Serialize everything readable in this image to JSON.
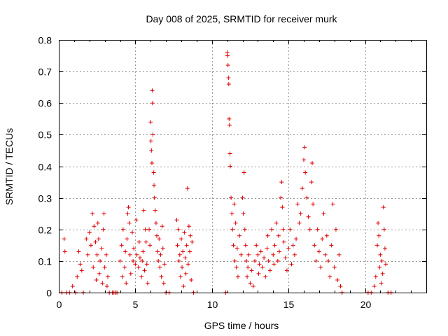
{
  "chart_data": {
    "type": "scatter",
    "title": "Day 008 of 2025, SRMTID for receiver murk",
    "xlabel": "GPS time / hours",
    "ylabel": "SRMTID / TECUs",
    "xlim": [
      0,
      24
    ],
    "ylim": [
      0,
      0.8
    ],
    "xticks": [
      0,
      5,
      10,
      15,
      20
    ],
    "yticks": [
      0,
      0.1,
      0.2,
      0.3,
      0.4,
      0.5,
      0.6,
      0.7,
      0.8
    ],
    "xtick_labels": [
      "0",
      "5",
      "10",
      "15",
      "20"
    ],
    "ytick_labels": [
      "0",
      "0.1",
      "0.2",
      "0.3",
      "0.4",
      "0.5",
      "0.6",
      "0.7",
      "0.8"
    ],
    "grid": true,
    "marker": "+",
    "color": "#e00000",
    "series": [
      {
        "points": [
          [
            0.2,
            0
          ],
          [
            0.35,
            0.17
          ],
          [
            0.4,
            0.13
          ],
          [
            0.5,
            0
          ],
          [
            0.7,
            0
          ],
          [
            0.9,
            0.02
          ],
          [
            1.1,
            0
          ],
          [
            1.2,
            0.05
          ],
          [
            1.3,
            0.13
          ],
          [
            1.4,
            0.09
          ],
          [
            1.5,
            0.07
          ],
          [
            1.6,
            0
          ],
          [
            1.8,
            0.17
          ],
          [
            1.9,
            0.12
          ],
          [
            2.0,
            0.19
          ],
          [
            2.1,
            0.15
          ],
          [
            2.2,
            0.25
          ],
          [
            2.25,
            0.08
          ],
          [
            2.3,
            0.21
          ],
          [
            2.4,
            0.16
          ],
          [
            2.45,
            0.04
          ],
          [
            2.5,
            0.12
          ],
          [
            2.55,
            0.22
          ],
          [
            2.6,
            0.17
          ],
          [
            2.65,
            0.06
          ],
          [
            2.7,
            0.1
          ],
          [
            2.8,
            0.14
          ],
          [
            2.85,
            0.03
          ],
          [
            2.9,
            0.2
          ],
          [
            2.95,
            0.25
          ],
          [
            3.0,
            0.08
          ],
          [
            3.1,
            0.12
          ],
          [
            3.15,
            0.02
          ],
          [
            3.2,
            0.05
          ],
          [
            3.3,
            0
          ],
          [
            3.5,
            0
          ],
          [
            3.6,
            0
          ],
          [
            3.7,
            0
          ],
          [
            3.8,
            0
          ],
          [
            4.0,
            0.1
          ],
          [
            4.1,
            0.15
          ],
          [
            4.15,
            0.05
          ],
          [
            4.2,
            0.2
          ],
          [
            4.3,
            0.08
          ],
          [
            4.35,
            0.13
          ],
          [
            4.4,
            0.03
          ],
          [
            4.45,
            0.17
          ],
          [
            4.5,
            0.25
          ],
          [
            4.55,
            0.27
          ],
          [
            4.6,
            0.22
          ],
          [
            4.65,
            0.12
          ],
          [
            4.7,
            0.06
          ],
          [
            4.8,
            0.19
          ],
          [
            4.85,
            0.1
          ],
          [
            4.9,
            0.14
          ],
          [
            5.0,
            0.09
          ],
          [
            5.05,
            0.23
          ],
          [
            5.1,
            0.12
          ],
          [
            5.2,
            0.08
          ],
          [
            5.25,
            0.16
          ],
          [
            5.3,
            0.11
          ],
          [
            5.4,
            0.05
          ],
          [
            5.45,
            0.1
          ],
          [
            5.5,
            0.13
          ],
          [
            5.55,
            0.26
          ],
          [
            5.6,
            0.07
          ],
          [
            5.65,
            0.2
          ],
          [
            5.7,
            0.16
          ],
          [
            5.75,
            0.09
          ],
          [
            5.8,
            0.03
          ],
          [
            5.9,
            0.2
          ],
          [
            5.95,
            0.15
          ],
          [
            6.0,
            0.54
          ],
          [
            6.02,
            0.48
          ],
          [
            6.05,
            0.45
          ],
          [
            6.08,
            0.41
          ],
          [
            6.1,
            0.64
          ],
          [
            6.12,
            0.6
          ],
          [
            6.15,
            0.5
          ],
          [
            6.2,
            0.38
          ],
          [
            6.22,
            0.34
          ],
          [
            6.25,
            0.3
          ],
          [
            6.3,
            0.26
          ],
          [
            6.35,
            0.22
          ],
          [
            6.4,
            0.18
          ],
          [
            6.45,
            0.13
          ],
          [
            6.5,
            0.1
          ],
          [
            6.55,
            0.17
          ],
          [
            6.6,
            0.08
          ],
          [
            6.65,
            0.12
          ],
          [
            6.7,
            0.05
          ],
          [
            6.75,
            0.21
          ],
          [
            6.8,
            0.14
          ],
          [
            6.85,
            0.03
          ],
          [
            6.9,
            0.09
          ],
          [
            7.0,
            0
          ],
          [
            7.2,
            0
          ],
          [
            7.7,
            0.23
          ],
          [
            7.75,
            0.15
          ],
          [
            7.8,
            0.2
          ],
          [
            7.85,
            0.1
          ],
          [
            7.9,
            0.12
          ],
          [
            7.95,
            0.05
          ],
          [
            8.0,
            0.17
          ],
          [
            8.05,
            0.08
          ],
          [
            8.1,
            0.13
          ],
          [
            8.15,
            0.02
          ],
          [
            8.2,
            0.19
          ],
          [
            8.25,
            0.11
          ],
          [
            8.3,
            0.06
          ],
          [
            8.35,
            0.15
          ],
          [
            8.4,
            0.33
          ],
          [
            8.45,
            0.09
          ],
          [
            8.5,
            0.21
          ],
          [
            8.55,
            0.13
          ],
          [
            8.6,
            0.18
          ],
          [
            8.65,
            0.04
          ],
          [
            8.7,
            0.16
          ],
          [
            8.8,
            0
          ],
          [
            10.9,
            0
          ],
          [
            11.0,
            0.76
          ],
          [
            11.02,
            0.75
          ],
          [
            11.05,
            0.72
          ],
          [
            11.08,
            0.68
          ],
          [
            11.1,
            0.66
          ],
          [
            11.12,
            0.55
          ],
          [
            11.15,
            0.53
          ],
          [
            11.18,
            0.44
          ],
          [
            11.2,
            0.4
          ],
          [
            11.25,
            0.3
          ],
          [
            11.3,
            0.25
          ],
          [
            11.35,
            0.2
          ],
          [
            11.4,
            0.15
          ],
          [
            11.45,
            0.28
          ],
          [
            11.5,
            0.1
          ],
          [
            11.55,
            0.22
          ],
          [
            11.6,
            0.08
          ],
          [
            11.65,
            0.14
          ],
          [
            11.7,
            0.05
          ],
          [
            11.8,
            0.18
          ],
          [
            11.9,
            0.12
          ],
          [
            12.0,
            0.3
          ],
          [
            12.05,
            0.25
          ],
          [
            12.1,
            0.38
          ],
          [
            12.15,
            0.2
          ],
          [
            12.2,
            0.15
          ],
          [
            12.25,
            0.1
          ],
          [
            12.3,
            0.05
          ],
          [
            12.35,
            0.08
          ],
          [
            12.4,
            0.12
          ],
          [
            12.5,
            0.03
          ],
          [
            12.6,
            0.07
          ],
          [
            12.7,
            0.02
          ],
          [
            12.8,
            0.1
          ],
          [
            12.9,
            0.15
          ],
          [
            13.0,
            0.12
          ],
          [
            13.05,
            0.06
          ],
          [
            13.1,
            0.09
          ],
          [
            13.2,
            0.13
          ],
          [
            13.3,
            0.08
          ],
          [
            13.4,
            0.11
          ],
          [
            13.5,
            0.05
          ],
          [
            13.6,
            0.14
          ],
          [
            13.65,
            0.18
          ],
          [
            13.7,
            0.1
          ],
          [
            13.8,
            0.07
          ],
          [
            13.9,
            0.2
          ],
          [
            14.0,
            0.12
          ],
          [
            14.05,
            0.09
          ],
          [
            14.1,
            0.15
          ],
          [
            14.2,
            0.22
          ],
          [
            14.3,
            0.1
          ],
          [
            14.35,
            0.18
          ],
          [
            14.4,
            0.13
          ],
          [
            14.5,
            0.3
          ],
          [
            14.55,
            0.35
          ],
          [
            14.6,
            0.27
          ],
          [
            14.65,
            0.2
          ],
          [
            14.7,
            0.16
          ],
          [
            14.8,
            0.11
          ],
          [
            14.9,
            0.07
          ],
          [
            15.0,
            0.14
          ],
          [
            15.1,
            0.2
          ],
          [
            15.2,
            0.09
          ],
          [
            15.3,
            0.15
          ],
          [
            15.4,
            0.12
          ],
          [
            15.5,
            0.17
          ],
          [
            15.6,
            0.28
          ],
          [
            15.7,
            0.22
          ],
          [
            15.8,
            0.25
          ],
          [
            15.9,
            0.33
          ],
          [
            16.0,
            0.42
          ],
          [
            16.05,
            0.46
          ],
          [
            16.1,
            0.38
          ],
          [
            16.2,
            0.3
          ],
          [
            16.3,
            0.24
          ],
          [
            16.4,
            0.2
          ],
          [
            16.5,
            0.35
          ],
          [
            16.55,
            0.41
          ],
          [
            16.6,
            0.28
          ],
          [
            16.7,
            0.15
          ],
          [
            16.8,
            0.1
          ],
          [
            16.9,
            0.2
          ],
          [
            17.0,
            0.13
          ],
          [
            17.1,
            0.08
          ],
          [
            17.2,
            0.17
          ],
          [
            17.3,
            0.25
          ],
          [
            17.4,
            0.12
          ],
          [
            17.5,
            0.18
          ],
          [
            17.6,
            0.1
          ],
          [
            17.7,
            0.05
          ],
          [
            17.8,
            0.15
          ],
          [
            17.9,
            0.28
          ],
          [
            18.0,
            0.08
          ],
          [
            18.1,
            0.2
          ],
          [
            18.2,
            0.04
          ],
          [
            18.3,
            0.12
          ],
          [
            18.4,
            0.02
          ],
          [
            18.5,
            0
          ],
          [
            20.2,
            0
          ],
          [
            20.4,
            0
          ],
          [
            20.6,
            0.02
          ],
          [
            20.7,
            0.05
          ],
          [
            20.8,
            0.15
          ],
          [
            20.85,
            0.22
          ],
          [
            20.9,
            0.18
          ],
          [
            20.95,
            0.08
          ],
          [
            21.0,
            0.12
          ],
          [
            21.05,
            0.03
          ],
          [
            21.1,
            0.1
          ],
          [
            21.15,
            0.06
          ],
          [
            21.2,
            0.27
          ],
          [
            21.25,
            0.2
          ],
          [
            21.3,
            0.14
          ],
          [
            21.35,
            0.09
          ],
          [
            21.5,
            0
          ],
          [
            21.7,
            0
          ]
        ]
      }
    ]
  }
}
